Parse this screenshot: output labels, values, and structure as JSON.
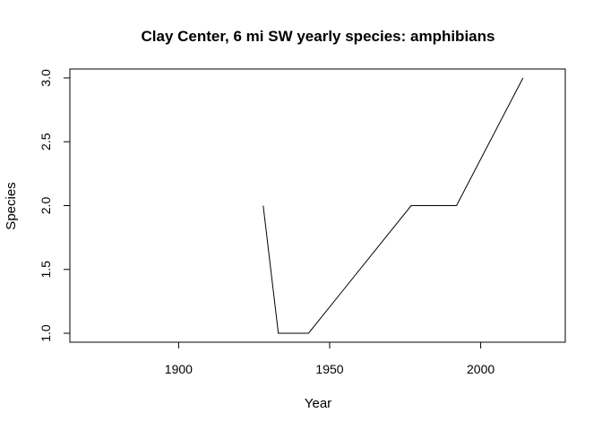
{
  "chart_data": {
    "type": "line",
    "title": "Clay Center, 6 mi SW yearly species: amphibians",
    "xlabel": "Year",
    "ylabel": "Species",
    "xlim": [
      1864,
      2028
    ],
    "ylim": [
      0.93,
      3.07
    ],
    "x_ticks": [
      1900,
      1950,
      2000
    ],
    "y_ticks": [
      1.0,
      1.5,
      2.0,
      2.5,
      3.0
    ],
    "y_tick_labels": [
      "1.0",
      "1.5",
      "2.0",
      "2.5",
      "3.0"
    ],
    "grid": false,
    "legend": "none",
    "series": [
      {
        "x": [
          1928,
          1933,
          1943,
          1977,
          1992,
          2014
        ],
        "y": [
          2,
          1,
          1,
          2,
          2,
          3
        ]
      }
    ]
  }
}
